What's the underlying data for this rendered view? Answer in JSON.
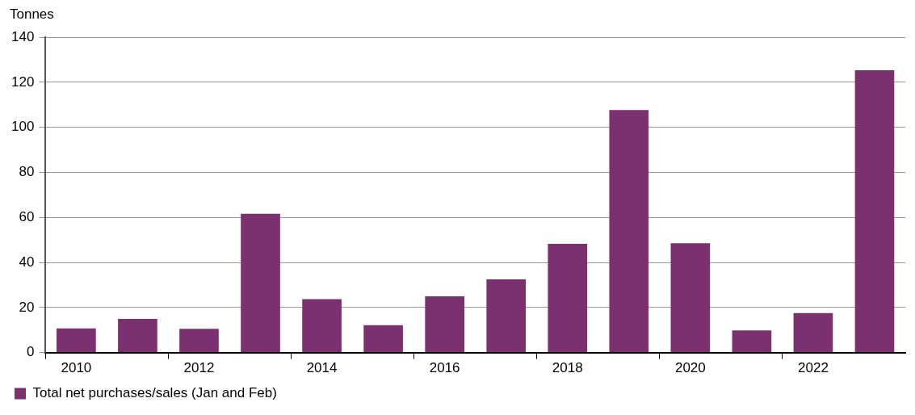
{
  "chart_data": {
    "type": "bar",
    "ylabel": "Tonnes",
    "categories": [
      "2010",
      null,
      "2012",
      null,
      "2014",
      null,
      "2016",
      null,
      "2018",
      null,
      "2020",
      null,
      "2022",
      null
    ],
    "series": [
      {
        "name": "Total net purchases/sales (Jan and Feb)",
        "color": "#7b3170",
        "values": [
          10.7,
          14.9,
          10.5,
          61.6,
          23.7,
          12.1,
          25.0,
          32.5,
          48.3,
          107.7,
          48.5,
          9.8,
          17.5,
          125.4
        ]
      }
    ],
    "ylim": [
      0,
      140
    ],
    "yticks": [
      0,
      20,
      40,
      60,
      80,
      100,
      120,
      140
    ],
    "grid": "y",
    "legend": "bottom left"
  }
}
